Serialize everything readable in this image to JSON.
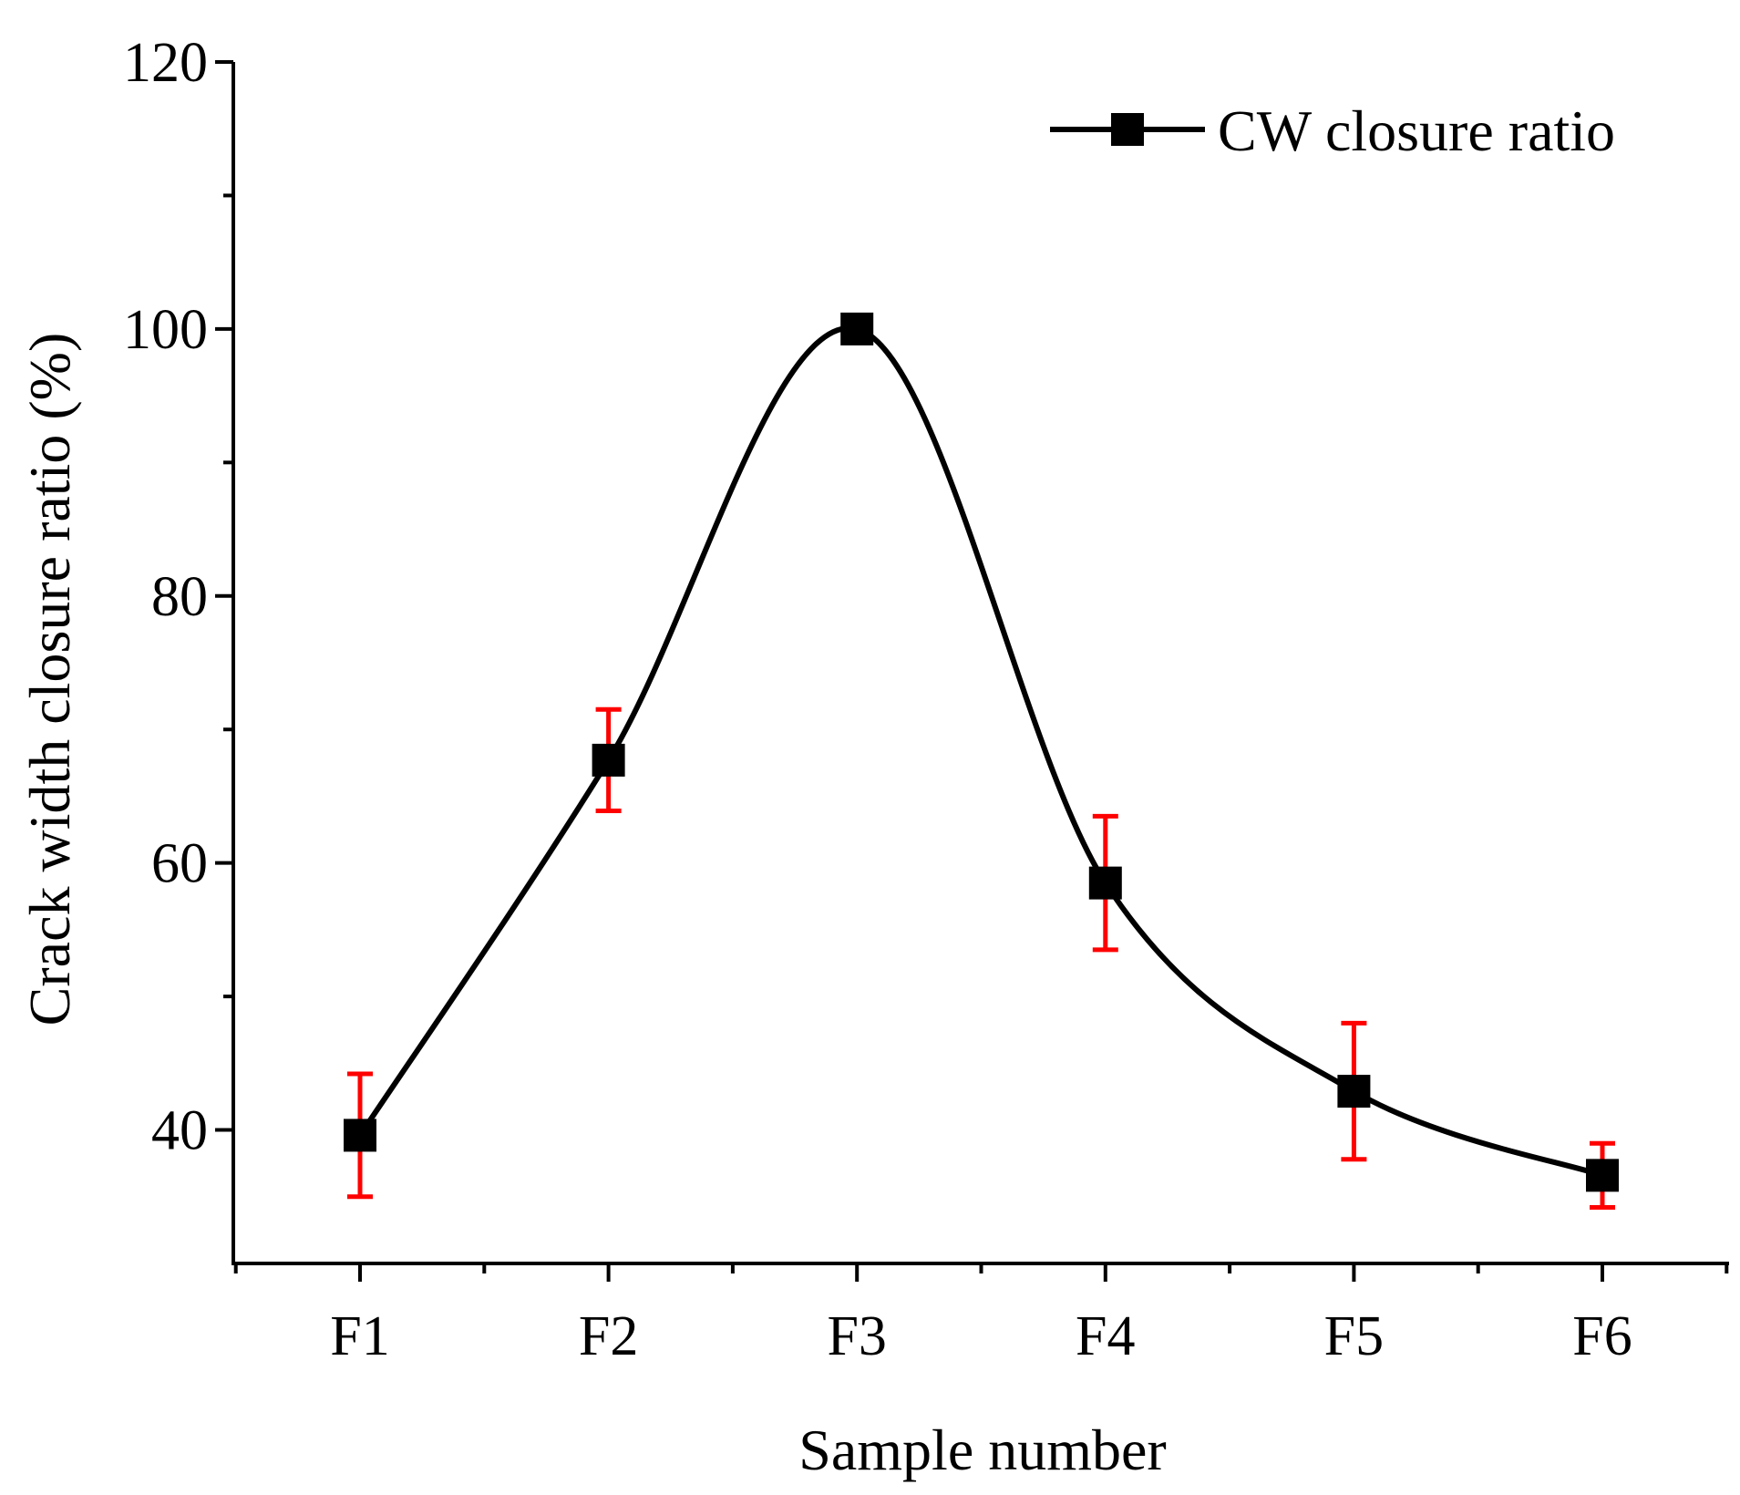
{
  "chart_data": {
    "type": "line",
    "title": "",
    "xlabel": "Sample number",
    "ylabel": "Crack width closure ratio (%)",
    "categories": [
      "F1",
      "F2",
      "F3",
      "F4",
      "F5",
      "F6"
    ],
    "ylim": [
      30,
      120
    ],
    "yticks": [
      40,
      60,
      80,
      100,
      120
    ],
    "yticks_labels": [
      "40",
      "60",
      "80",
      "100",
      "120"
    ],
    "grid": false,
    "legend_position": "top-right",
    "series": [
      {
        "name": "CW closure ratio",
        "values": [
          39.6,
          67.7,
          100.0,
          58.5,
          42.9,
          36.6
        ],
        "error": [
          4.6,
          3.8,
          1.0,
          5.0,
          5.1,
          2.4
        ],
        "color": "#000000",
        "error_color": "#ff0000",
        "marker": "square",
        "smooth": true
      }
    ]
  }
}
